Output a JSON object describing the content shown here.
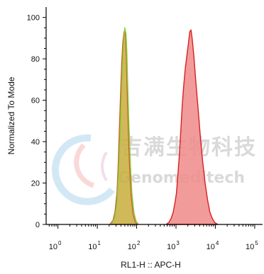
{
  "chart_data": {
    "type": "area",
    "title": "",
    "xlabel": "RL1-H :: APC-H",
    "ylabel": "Normalized To Mode",
    "x_scale": "log",
    "xlim": [
      -0.3,
      5.2
    ],
    "ylim": [
      0,
      105
    ],
    "x_ticks": [
      {
        "base": "10",
        "exp": "0",
        "value": 0
      },
      {
        "base": "10",
        "exp": "1",
        "value": 1
      },
      {
        "base": "10",
        "exp": "2",
        "value": 2
      },
      {
        "base": "10",
        "exp": "3",
        "value": 3
      },
      {
        "base": "10",
        "exp": "4",
        "value": 4
      },
      {
        "base": "10",
        "exp": "5",
        "value": 5
      }
    ],
    "y_ticks": [
      "0",
      "20",
      "40",
      "60",
      "80",
      "100"
    ],
    "y_tick_values": [
      0,
      20,
      40,
      60,
      80,
      100
    ],
    "grid": false,
    "series": [
      {
        "fill": "#c8ad3c",
        "stroke": "#d45a28",
        "fill_opacity": 0.85,
        "points": [
          [
            1.32,
            0
          ],
          [
            1.4,
            2
          ],
          [
            1.45,
            6
          ],
          [
            1.5,
            15
          ],
          [
            1.53,
            28
          ],
          [
            1.56,
            45
          ],
          [
            1.59,
            62
          ],
          [
            1.62,
            78
          ],
          [
            1.65,
            88
          ],
          [
            1.68,
            93
          ],
          [
            1.7,
            94
          ],
          [
            1.72,
            90
          ],
          [
            1.74,
            80
          ],
          [
            1.76,
            65
          ],
          [
            1.79,
            45
          ],
          [
            1.82,
            28
          ],
          [
            1.86,
            14
          ],
          [
            1.91,
            5
          ],
          [
            1.97,
            1
          ],
          [
            2.03,
            0
          ]
        ]
      },
      {
        "fill": "none",
        "stroke": "#86d23a",
        "fill_opacity": 0,
        "points": [
          [
            1.36,
            0
          ],
          [
            1.44,
            3
          ],
          [
            1.5,
            10
          ],
          [
            1.54,
            24
          ],
          [
            1.58,
            42
          ],
          [
            1.61,
            60
          ],
          [
            1.64,
            76
          ],
          [
            1.67,
            88
          ],
          [
            1.7,
            95
          ],
          [
            1.73,
            92
          ],
          [
            1.75,
            84
          ],
          [
            1.77,
            70
          ],
          [
            1.8,
            50
          ],
          [
            1.84,
            30
          ],
          [
            1.88,
            15
          ],
          [
            1.93,
            6
          ],
          [
            1.98,
            2
          ],
          [
            2.04,
            0
          ]
        ]
      },
      {
        "fill": "#ee8a8a",
        "stroke": "#d9201e",
        "fill_opacity": 0.85,
        "points": [
          [
            2.75,
            0
          ],
          [
            2.82,
            1
          ],
          [
            2.88,
            3
          ],
          [
            2.93,
            6
          ],
          [
            2.97,
            10
          ],
          [
            3.01,
            15
          ],
          [
            3.04,
            22
          ],
          [
            3.08,
            32
          ],
          [
            3.12,
            45
          ],
          [
            3.16,
            58
          ],
          [
            3.2,
            68
          ],
          [
            3.24,
            76
          ],
          [
            3.28,
            82
          ],
          [
            3.32,
            88
          ],
          [
            3.35,
            93
          ],
          [
            3.38,
            94
          ],
          [
            3.41,
            90
          ],
          [
            3.45,
            82
          ],
          [
            3.5,
            70
          ],
          [
            3.56,
            56
          ],
          [
            3.62,
            42
          ],
          [
            3.68,
            30
          ],
          [
            3.74,
            20
          ],
          [
            3.8,
            12
          ],
          [
            3.86,
            6
          ],
          [
            3.92,
            3
          ],
          [
            3.98,
            1
          ],
          [
            4.06,
            0
          ]
        ]
      }
    ]
  },
  "watermark": {
    "cn": "吉满生物科技",
    "en": "Genomeditech"
  }
}
